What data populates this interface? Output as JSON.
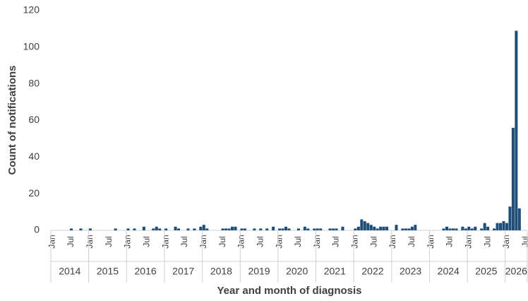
{
  "chart_data": {
    "type": "bar",
    "x_label": "Year and month of diagnosis",
    "y_label": "Count of notifications",
    "categories": [
      "Jan",
      null,
      null,
      null,
      null,
      null,
      "Jul",
      null,
      null,
      null,
      null,
      null,
      "Jan",
      null,
      null,
      null,
      null,
      null,
      "Jul",
      null,
      null,
      null,
      null,
      null,
      "Jan",
      null,
      null,
      null,
      null,
      null,
      "Jul",
      null,
      null,
      null,
      null,
      null,
      "Jan",
      null,
      null,
      null,
      null,
      null,
      "Jul",
      null,
      null,
      null,
      null,
      null,
      "Jan",
      null,
      null,
      null,
      null,
      null,
      "Jul",
      null,
      null,
      null,
      null,
      null,
      "Jan",
      null,
      null,
      null,
      null,
      null,
      "Jul",
      null,
      null,
      null,
      null,
      null,
      "Jan",
      null,
      null,
      null,
      null,
      null,
      "Jul",
      null,
      null,
      null,
      null,
      null,
      "Jan",
      null,
      null,
      null,
      null,
      null,
      "Jul",
      null,
      null,
      null,
      null,
      null,
      "Jan",
      null,
      null,
      null,
      null,
      null,
      "Jul",
      null,
      null,
      null,
      null,
      null,
      "Jan",
      null,
      null,
      null,
      null,
      null,
      "Jul",
      null,
      null,
      null,
      null,
      null,
      "Jan",
      null,
      null,
      null,
      null,
      null,
      "Jul",
      null,
      null,
      null,
      null,
      null,
      "Jan",
      null,
      null,
      null,
      null,
      null,
      "Jul",
      null,
      null,
      null,
      null,
      null,
      "Jan",
      null,
      null,
      null,
      null,
      null,
      "Jul"
    ],
    "years": [
      "2014",
      "2015",
      "2016",
      "2017",
      "2018",
      "2019",
      "2020",
      "2021",
      "2022",
      "2023",
      "2024",
      "2025",
      "2026"
    ],
    "values": [
      0,
      0,
      0,
      0,
      0,
      0,
      1,
      0,
      0,
      1,
      0,
      0,
      1,
      0,
      0,
      0,
      0,
      0,
      0,
      0,
      1,
      0,
      0,
      0,
      1,
      0,
      1,
      0,
      0,
      2,
      0,
      0,
      1,
      2,
      1,
      0,
      1,
      0,
      0,
      2,
      1,
      0,
      0,
      1,
      0,
      1,
      0,
      2,
      3,
      1,
      0,
      0,
      0,
      0,
      1,
      1,
      1,
      2,
      2,
      0,
      1,
      1,
      0,
      0,
      1,
      0,
      1,
      0,
      1,
      0,
      2,
      0,
      1,
      1,
      2,
      1,
      0,
      0,
      1,
      0,
      2,
      1,
      0,
      1,
      1,
      1,
      0,
      0,
      1,
      1,
      1,
      0,
      2,
      0,
      0,
      0,
      1,
      2,
      6,
      5,
      4,
      3,
      2,
      1,
      2,
      2,
      2,
      0,
      0,
      3,
      0,
      1,
      1,
      1,
      2,
      3,
      0,
      0,
      0,
      0,
      0,
      0,
      0,
      0,
      1,
      2,
      1,
      1,
      1,
      0,
      2,
      1,
      2,
      1,
      2,
      0,
      1,
      4,
      2,
      0,
      1,
      4,
      4,
      5,
      4,
      13,
      56,
      109,
      12,
      0,
      0
    ],
    "color": "#1f4e79",
    "ylim": [
      0,
      120
    ],
    "yticks": [
      0,
      20,
      40,
      60,
      80,
      100,
      120
    ],
    "grid": false
  }
}
